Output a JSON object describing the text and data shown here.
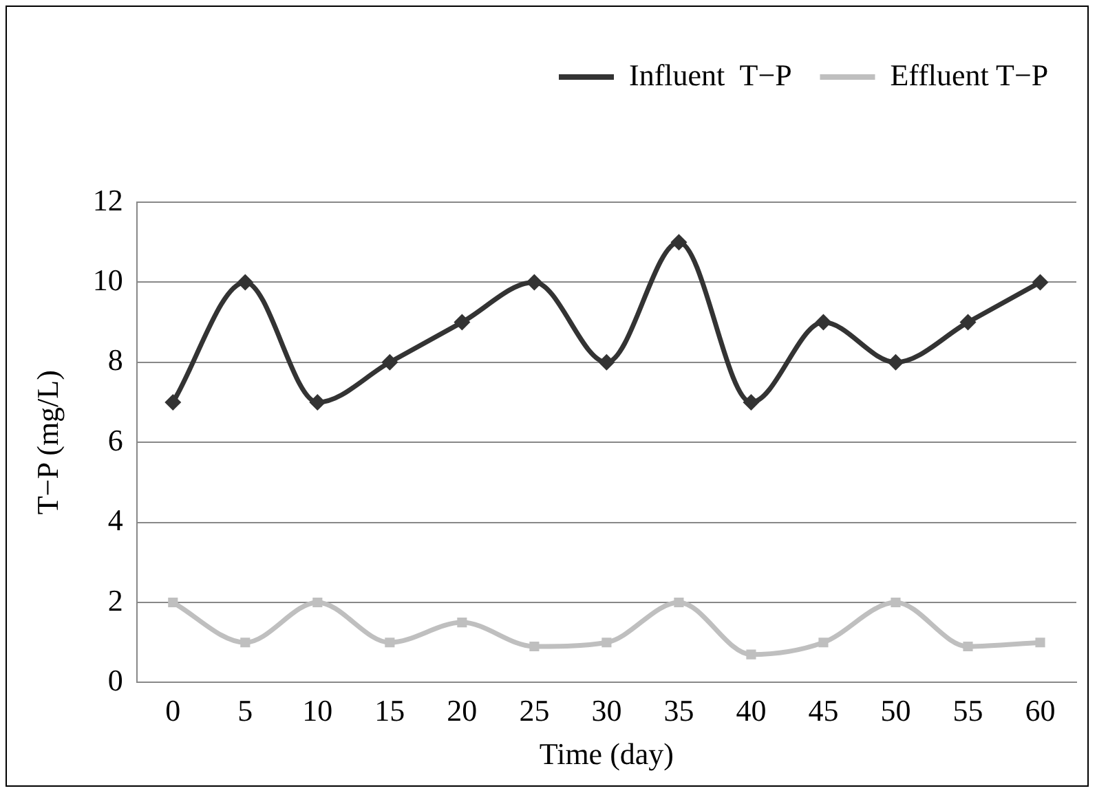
{
  "chart_data": {
    "type": "line",
    "xlabel": "Time (day)",
    "ylabel": "T−P (mg/L)",
    "categories": [
      "0",
      "5",
      "10",
      "15",
      "20",
      "25",
      "30",
      "35",
      "40",
      "45",
      "50",
      "55",
      "60"
    ],
    "series": [
      {
        "name": "Influent  T−P",
        "color": "#333333",
        "marker": "diamond",
        "values": [
          7,
          10,
          7,
          8,
          9,
          10,
          8,
          11,
          7,
          9,
          8,
          9,
          10
        ]
      },
      {
        "name": "Effluent T−P",
        "color": "#bfbfbf",
        "marker": "square",
        "values": [
          2,
          1,
          2,
          1,
          1.5,
          0.9,
          1,
          2,
          0.7,
          1,
          2,
          0.9,
          1
        ]
      }
    ],
    "ylim": [
      0,
      12
    ],
    "yticks": [
      0,
      2,
      4,
      6,
      8,
      10,
      12
    ],
    "grid": "y",
    "legend": "top right",
    "line_style": "solid"
  }
}
